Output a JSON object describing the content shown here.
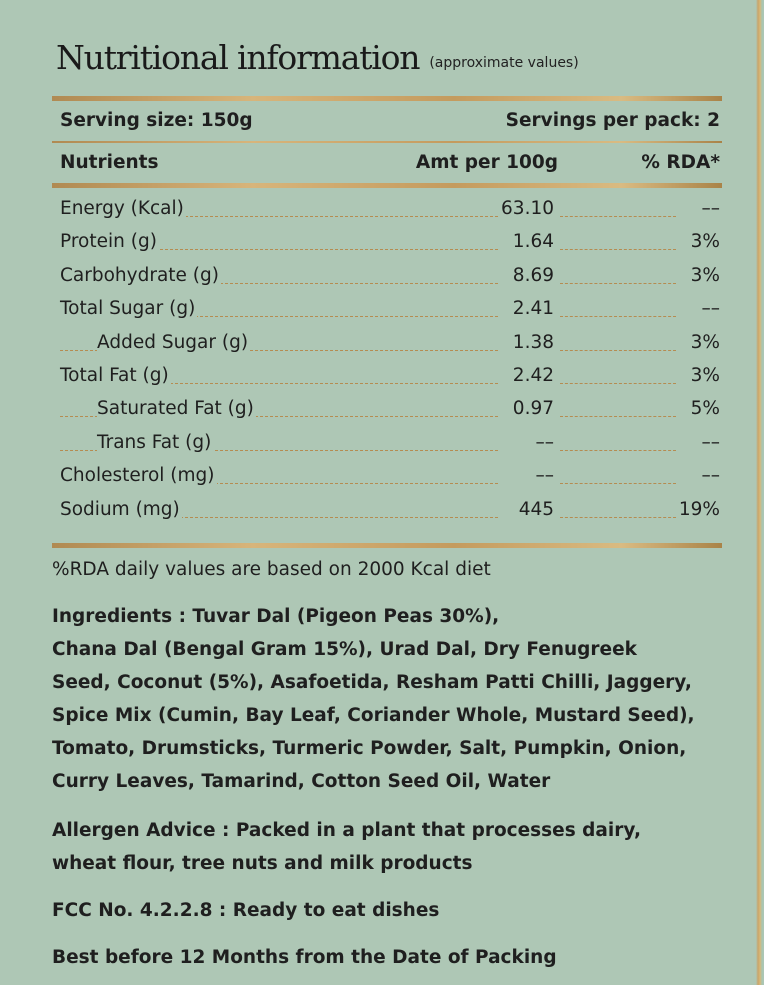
{
  "title": "Nutritional information",
  "title_note": "(approximate values)",
  "serving_size": "Serving size: 150g",
  "servings_per_pack": "Servings per pack: 2",
  "columns": {
    "nutrients": "Nutrients",
    "amount": "Amt per 100g",
    "rda": "% RDA*"
  },
  "nutrients": [
    {
      "name": "Energy (Kcal)",
      "amount": "63.10",
      "rda": "––",
      "indent": false
    },
    {
      "name": "Protein (g)",
      "amount": "1.64",
      "rda": "3%",
      "indent": false
    },
    {
      "name": "Carbohydrate (g)",
      "amount": "8.69",
      "rda": "3%",
      "indent": false
    },
    {
      "name": "Total Sugar (g)",
      "amount": "2.41",
      "rda": "––",
      "indent": false
    },
    {
      "name": "Added Sugar (g)",
      "amount": "1.38",
      "rda": "3%",
      "indent": true
    },
    {
      "name": "Total Fat (g)",
      "amount": "2.42",
      "rda": "3%",
      "indent": false
    },
    {
      "name": "Saturated Fat (g)",
      "amount": "0.97",
      "rda": "5%",
      "indent": true
    },
    {
      "name": "Trans Fat (g)",
      "amount": "––",
      "rda": "––",
      "indent": true
    },
    {
      "name": "Cholesterol (mg)",
      "amount": "––",
      "rda": "––",
      "indent": false
    },
    {
      "name": "Sodium (mg)",
      "amount": "445",
      "rda": "19%",
      "indent": false
    }
  ],
  "rda_note": "%RDA daily values are based on 2000 Kcal diet",
  "ingredients_label": "Ingredients :",
  "ingredients_lines": [
    "Tuvar Dal (Pigeon Peas 30%),",
    "Chana Dal (Bengal Gram 15%), Urad Dal, Dry Fenugreek",
    "Seed, Coconut (5%), Asafoetida, Resham Patti Chilli, Jaggery,",
    "Spice Mix (Cumin, Bay Leaf, Coriander Whole, Mustard Seed),",
    "Tomato, Drumsticks, Turmeric Powder, Salt,  Pumpkin, Onion,",
    "Curry Leaves, Tamarind, Cotton Seed Oil, Water"
  ],
  "allergen_label": "Allergen Advice :",
  "allergen_lines": [
    "Packed in a plant that processes dairy,",
    "wheat flour, tree nuts and milk products"
  ],
  "fcc_label": "FCC No. 4.2.2.8",
  "fcc_text": ": Ready to eat dishes",
  "best_before": "Best before 12 Months from the Date of Packing",
  "colors": {
    "background": "#aec7b5",
    "gold": "#c49b5e",
    "text": "#1f1f1f"
  }
}
